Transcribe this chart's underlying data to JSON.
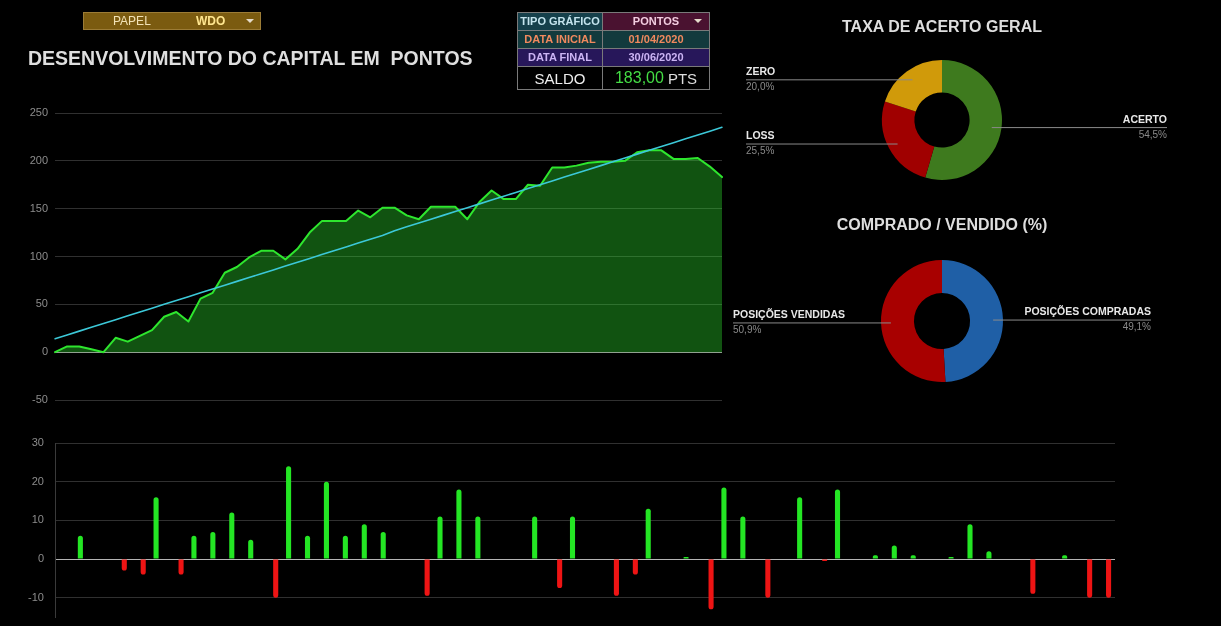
{
  "chart_data": [
    {
      "type": "other",
      "annotations": [
        "PAPEL",
        "WDO"
      ]
    },
    {
      "type": "other",
      "annotations": [
        "TIPO GRÁFICO",
        "PONTOS",
        "DATA INICIAL",
        "01/04/2020",
        "DATA FINAL",
        "30/06/2020",
        "SALDO",
        "183,00",
        "PTS"
      ]
    },
    {
      "type": "area",
      "title": "DESENVOLVIMENTO DO CAPITAL EM  PONTOS",
      "categories": [
        null,
        null,
        null,
        null,
        null,
        null,
        null,
        null,
        null,
        null,
        null,
        null,
        null,
        null,
        null,
        null,
        null,
        null,
        null,
        null,
        null,
        null,
        null,
        null,
        null,
        null,
        null,
        null,
        null,
        null,
        null,
        null,
        null,
        null,
        null,
        null,
        null,
        null,
        null,
        null,
        null,
        null,
        null,
        null,
        null,
        null,
        null,
        null,
        null,
        null,
        null,
        null,
        null,
        null,
        null,
        null
      ],
      "series": [
        {
          "type": "area",
          "color": "#2ee62e",
          "values": [
            0,
            6,
            6,
            3,
            0,
            15,
            11,
            17,
            23,
            37,
            42,
            32,
            56,
            62,
            83,
            89,
            99,
            106,
            106,
            97,
            108,
            125,
            137,
            137,
            137,
            148,
            141,
            151,
            151,
            143,
            139,
            152,
            152,
            152,
            139,
            157,
            169,
            160,
            160,
            175,
            174,
            193,
            193,
            195,
            198,
            199,
            199,
            200,
            209,
            211,
            211,
            202,
            202,
            203,
            194,
            183
          ]
        },
        {
          "type": "line",
          "color": "#3cc8d8",
          "values": [
            14,
            18,
            22,
            26,
            30,
            34,
            38,
            42,
            46,
            50,
            54,
            58,
            62,
            66,
            70,
            74,
            78,
            82,
            86,
            90,
            94,
            98,
            102,
            106,
            110,
            114,
            118,
            122,
            127,
            131,
            135,
            139,
            143,
            147,
            151,
            155,
            159,
            163,
            167,
            171,
            175,
            179,
            183,
            187,
            191,
            195,
            199,
            203,
            207,
            211,
            215,
            219,
            223,
            227,
            231,
            235
          ]
        }
      ],
      "ylim": [
        -50,
        250
      ],
      "yticks": [
        -50,
        0,
        50,
        100,
        150,
        200,
        250
      ],
      "grid": "y"
    },
    {
      "type": "donut",
      "title": "TAXA DE ACERTO GERAL",
      "categories": [
        "ACERTO",
        "LOSS",
        "ZERO"
      ],
      "values": [
        54.5,
        25.5,
        20.0
      ],
      "colors": [
        "#3e7a1e",
        "#a00000",
        "#d09a0a"
      ],
      "value_labels": [
        "54,5%",
        "25,5%",
        "20,0%"
      ]
    },
    {
      "type": "donut",
      "title": "COMPRADO / VENDIDO (%)",
      "categories": [
        "POSIÇÕES COMPRADAS",
        "POSIÇÕES VENDIDAS"
      ],
      "values": [
        49.1,
        50.9
      ],
      "colors": [
        "#1f5fa6",
        "#a80000"
      ],
      "value_labels": [
        "49,1%",
        "50,9%"
      ]
    },
    {
      "type": "bar",
      "categories": [
        null,
        null,
        null,
        null,
        null,
        null,
        null,
        null,
        null,
        null,
        null,
        null,
        null,
        null,
        null,
        null,
        null,
        null,
        null,
        null,
        null,
        null,
        null,
        null,
        null,
        null,
        null,
        null,
        null,
        null,
        null,
        null,
        null,
        null,
        null,
        null,
        null,
        null,
        null,
        null,
        null,
        null,
        null,
        null,
        null,
        null,
        null,
        null,
        null,
        null,
        null,
        null,
        null,
        null,
        null,
        null
      ],
      "series": [
        {
          "color": "#ee1414",
          "values": [
            null,
            null,
            null,
            -3,
            -4,
            null,
            -4,
            null,
            null,
            null,
            null,
            -10,
            null,
            null,
            null,
            null,
            null,
            null,
            null,
            -9.5,
            null,
            null,
            null,
            null,
            null,
            null,
            -7.5,
            null,
            null,
            -9.5,
            -4,
            null,
            null,
            null,
            -13,
            null,
            null,
            -10,
            null,
            null,
            -0.5,
            null,
            null,
            null,
            null,
            null,
            null,
            null,
            null,
            null,
            null,
            -9,
            null,
            null,
            -10,
            -10
          ]
        },
        {
          "color": "#24e624",
          "values": [
            null,
            6,
            null,
            null,
            null,
            16,
            null,
            6,
            7,
            12,
            5,
            null,
            24,
            6,
            20,
            6,
            9,
            7,
            null,
            null,
            11,
            18,
            11,
            null,
            null,
            11,
            null,
            11,
            null,
            null,
            null,
            13,
            null,
            0.5,
            null,
            18.5,
            11,
            null,
            null,
            16,
            null,
            18,
            null,
            1,
            3.5,
            1,
            null,
            0.5,
            9,
            2,
            null,
            null,
            null,
            1,
            null,
            null
          ]
        }
      ],
      "ylim": [
        -15,
        30
      ],
      "yticks": [
        -10,
        0,
        10,
        20,
        30
      ],
      "grid": "y"
    }
  ]
}
